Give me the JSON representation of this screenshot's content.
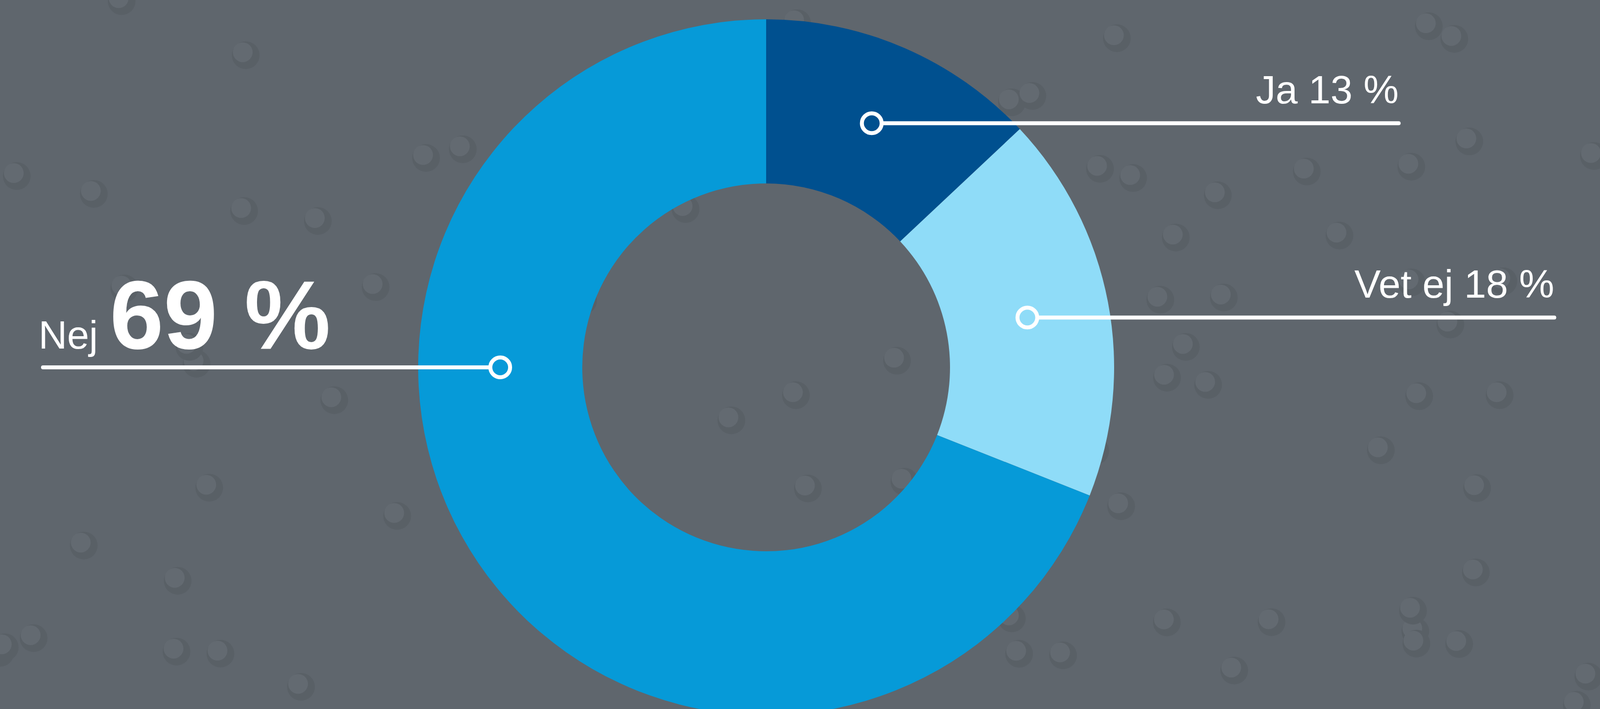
{
  "chart_data": {
    "type": "pie",
    "categories": [
      "Ja",
      "Vet ej",
      "Nej"
    ],
    "values": [
      13,
      18,
      69
    ],
    "value_labels": [
      "13 %",
      "18 %",
      "69 %"
    ],
    "colors": [
      "#00508f",
      "#8fdcf8",
      "#069ad8"
    ],
    "data_labels": true
  }
}
